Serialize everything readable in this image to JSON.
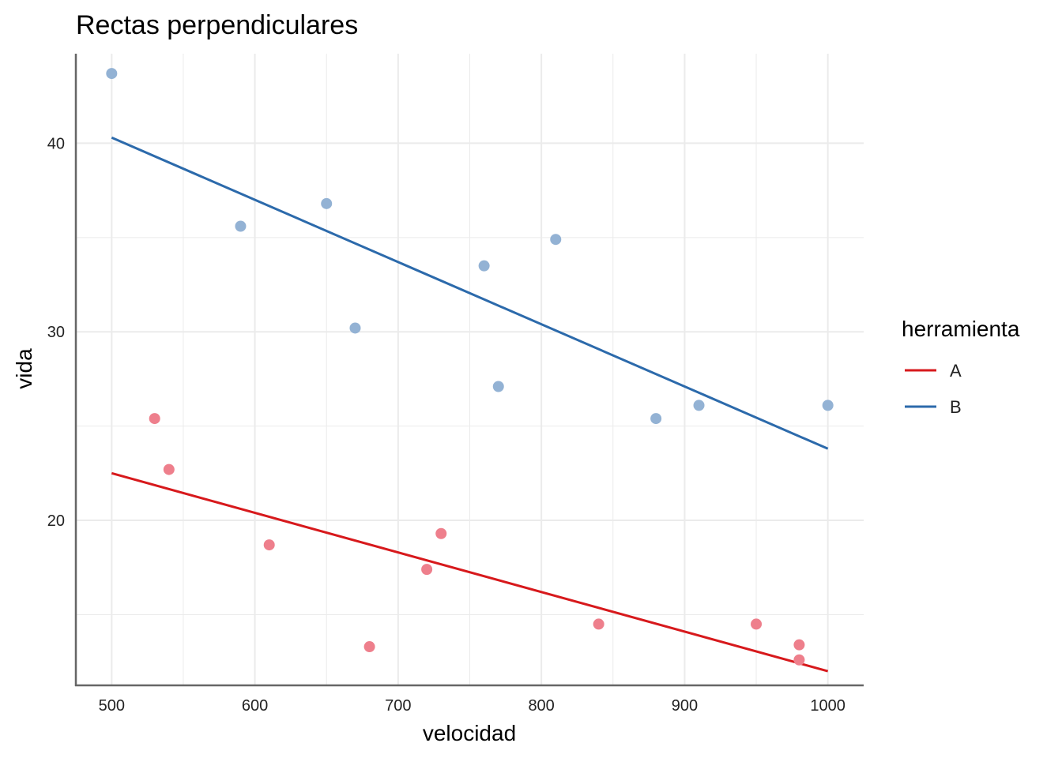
{
  "chart_data": {
    "type": "scatter",
    "title": "Rectas perpendiculares",
    "xlabel": "velocidad",
    "ylabel": "vida",
    "xlim": [
      475,
      1025
    ],
    "ylim": [
      11.25,
      44.75
    ],
    "x_ticks": [
      500,
      600,
      700,
      800,
      900,
      1000
    ],
    "y_ticks": [
      20,
      30,
      40
    ],
    "grid": true,
    "legend": {
      "title": "herramienta",
      "placement": "right",
      "entries": [
        "A",
        "B"
      ]
    },
    "series": [
      {
        "name": "A",
        "color": "#D7191C",
        "point_color": "#EE7F8C",
        "points": [
          {
            "x": 530,
            "y": 25.4
          },
          {
            "x": 540,
            "y": 22.7
          },
          {
            "x": 610,
            "y": 18.7
          },
          {
            "x": 680,
            "y": 13.3
          },
          {
            "x": 720,
            "y": 17.4
          },
          {
            "x": 730,
            "y": 19.3
          },
          {
            "x": 840,
            "y": 14.5
          },
          {
            "x": 950,
            "y": 14.5
          },
          {
            "x": 980,
            "y": 13.4
          },
          {
            "x": 980,
            "y": 12.6
          }
        ],
        "fit_line": {
          "x": [
            500,
            1000
          ],
          "y": [
            22.5,
            12.0
          ]
        }
      },
      {
        "name": "B",
        "color": "#2C6AAB",
        "point_color": "#93B2D4",
        "points": [
          {
            "x": 500,
            "y": 43.7
          },
          {
            "x": 590,
            "y": 35.6
          },
          {
            "x": 650,
            "y": 36.8
          },
          {
            "x": 670,
            "y": 30.2
          },
          {
            "x": 760,
            "y": 33.5
          },
          {
            "x": 770,
            "y": 27.1
          },
          {
            "x": 810,
            "y": 34.9
          },
          {
            "x": 880,
            "y": 25.4
          },
          {
            "x": 910,
            "y": 26.1
          },
          {
            "x": 1000,
            "y": 26.1
          }
        ],
        "fit_line": {
          "x": [
            500,
            1000
          ],
          "y": [
            40.3,
            23.8
          ]
        }
      }
    ]
  }
}
